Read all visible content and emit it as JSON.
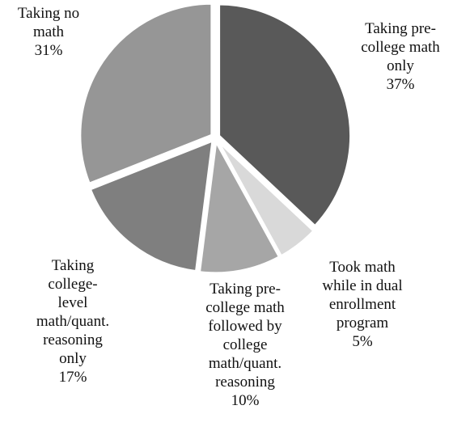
{
  "chart_data": {
    "type": "pie",
    "title": "",
    "unit": "%",
    "slices": [
      {
        "label_lines": [
          "Taking pre-",
          "college math",
          "only"
        ],
        "pct_label": "37%",
        "value": 37,
        "color": "#595959"
      },
      {
        "label_lines": [
          "Took math",
          "while in dual",
          "enrollment",
          "program"
        ],
        "pct_label": "5%",
        "value": 5,
        "color": "#d9d9d9"
      },
      {
        "label_lines": [
          "Taking pre-",
          "college math",
          "followed by",
          "college",
          "math/quant.",
          "reasoning"
        ],
        "pct_label": "10%",
        "value": 10,
        "color": "#a6a6a6"
      },
      {
        "label_lines": [
          "Taking",
          "college-",
          "level",
          "math/quant.",
          "reasoning",
          "only"
        ],
        "pct_label": "17%",
        "value": 17,
        "color": "#7f7f7f"
      },
      {
        "label_lines": [
          "Taking no",
          "math"
        ],
        "pct_label": "31%",
        "value": 31,
        "color": "#969696"
      }
    ]
  }
}
